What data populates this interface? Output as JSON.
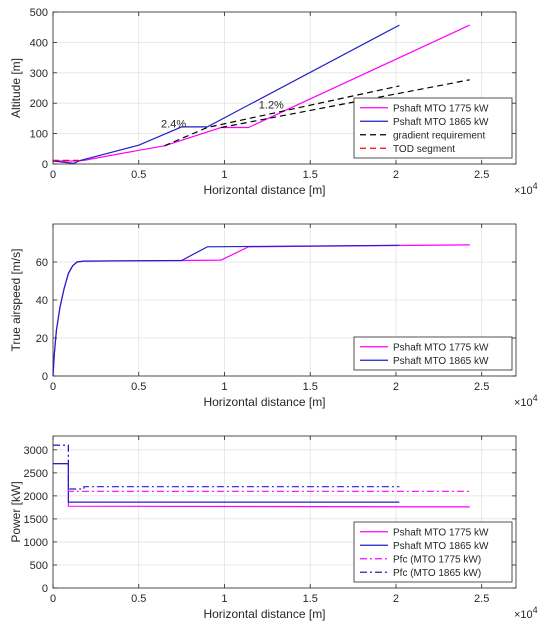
{
  "colors": {
    "magenta": "#ff00ff",
    "blue": "#2020c8",
    "black": "#000000",
    "red": "#ff0000",
    "axis": "#262626",
    "grid": "#e2e2e2"
  },
  "chart_data": [
    {
      "type": "line",
      "xlabel": "Horizontal distance [m]",
      "ylabel": "Altitude [m]",
      "xlim": [
        0,
        27000
      ],
      "ylim": [
        0,
        500
      ],
      "xticks": [
        0,
        5000,
        10000,
        15000,
        20000,
        25000
      ],
      "xtick_labels": [
        "0",
        "0.5",
        "1",
        "1.5",
        "2",
        "2.5"
      ],
      "yticks": [
        0,
        100,
        200,
        300,
        400,
        500
      ],
      "ytick_labels": [
        "0",
        "100",
        "200",
        "300",
        "400",
        "500"
      ],
      "x_exponent": "×10",
      "x_exponent_power": "4",
      "grid": true,
      "legend_position": "bottom-right",
      "annotations": [
        {
          "text": "2.4%",
          "x": 6300,
          "y": 120
        },
        {
          "text": "1.2%",
          "x": 12000,
          "y": 183
        }
      ],
      "series": [
        {
          "name": "Pshaft MTO 1775 kW",
          "color": "magenta",
          "dash": "solid",
          "points": [
            [
              0,
              10
            ],
            [
              1300,
              10
            ],
            [
              1800,
              12
            ],
            [
              5000,
              45
            ],
            [
              6500,
              60
            ],
            [
              9800,
              120
            ],
            [
              11400,
              120
            ],
            [
              24300,
              457
            ]
          ]
        },
        {
          "name": "Pshaft MTO 1865 kW",
          "color": "blue",
          "dash": "solid",
          "points": [
            [
              0,
              10
            ],
            [
              1200,
              2
            ],
            [
              1600,
              12
            ],
            [
              5000,
              62
            ],
            [
              7500,
              122
            ],
            [
              9000,
              122
            ],
            [
              20200,
              457
            ]
          ]
        },
        {
          "name": "gradient requirement",
          "color": "black",
          "dash": "dash",
          "points": [
            [
              6500,
              60
            ],
            [
              9000,
              120
            ],
            [
              20200,
              257
            ]
          ],
          "extra": [
            [
              [
                9800,
                120
              ],
              [
                24300,
                277
              ]
            ]
          ]
        },
        {
          "name": "TOD segment",
          "color": "red",
          "dash": "dash",
          "points": [
            [
              0,
              12
            ],
            [
              1500,
              12
            ]
          ]
        }
      ]
    },
    {
      "type": "line",
      "xlabel": "Horizontal distance [m]",
      "ylabel": "True airspeed [m/s]",
      "xlim": [
        0,
        27000
      ],
      "ylim": [
        0,
        80
      ],
      "xticks": [
        0,
        5000,
        10000,
        15000,
        20000,
        25000
      ],
      "xtick_labels": [
        "0",
        "0.5",
        "1",
        "1.5",
        "2",
        "2.5"
      ],
      "yticks": [
        0,
        20,
        40,
        60
      ],
      "ytick_labels": [
        "0",
        "20",
        "40",
        "60"
      ],
      "x_exponent": "×10",
      "x_exponent_power": "4",
      "grid": true,
      "legend_position": "bottom-right",
      "series": [
        {
          "name": "Pshaft MTO 1775 kW",
          "color": "magenta",
          "dash": "solid",
          "points": [
            [
              0,
              0
            ],
            [
              80,
              12
            ],
            [
              200,
              24
            ],
            [
              400,
              36
            ],
            [
              650,
              46
            ],
            [
              900,
              54
            ],
            [
              1150,
              58
            ],
            [
              1400,
              60
            ],
            [
              1800,
              60.5
            ],
            [
              7500,
              60.8
            ],
            [
              9800,
              61
            ],
            [
              11400,
              68
            ],
            [
              24300,
              69
            ]
          ]
        },
        {
          "name": "Pshaft MTO 1865 kW",
          "color": "blue",
          "dash": "solid",
          "points": [
            [
              0,
              0
            ],
            [
              80,
              12
            ],
            [
              200,
              24
            ],
            [
              400,
              36
            ],
            [
              650,
              46
            ],
            [
              900,
              54
            ],
            [
              1150,
              58
            ],
            [
              1400,
              60
            ],
            [
              1800,
              60.5
            ],
            [
              7500,
              60.8
            ],
            [
              9000,
              68
            ],
            [
              20200,
              68.8
            ]
          ]
        }
      ]
    },
    {
      "type": "line",
      "xlabel": "Horizontal distance [m]",
      "ylabel": "Power [kW]",
      "xlim": [
        0,
        27000
      ],
      "ylim": [
        0,
        3300
      ],
      "xticks": [
        0,
        5000,
        10000,
        15000,
        20000,
        25000
      ],
      "xtick_labels": [
        "0",
        "0.5",
        "1",
        "1.5",
        "2",
        "2.5"
      ],
      "yticks": [
        0,
        500,
        1000,
        1500,
        2000,
        2500,
        3000
      ],
      "ytick_labels": [
        "0",
        "500",
        "1000",
        "1500",
        "2000",
        "2500",
        "3000"
      ],
      "x_exponent": "×10",
      "x_exponent_power": "4",
      "grid": true,
      "legend_position": "bottom-right",
      "series": [
        {
          "name": "Pshaft MTO 1775 kW",
          "color": "magenta",
          "dash": "solid",
          "points": [
            [
              0,
              2700
            ],
            [
              900,
              2700
            ],
            [
              900,
              1775
            ],
            [
              24300,
              1760
            ]
          ]
        },
        {
          "name": "Pshaft MTO 1865 kW",
          "color": "blue",
          "dash": "solid",
          "points": [
            [
              0,
              2700
            ],
            [
              900,
              2700
            ],
            [
              900,
              1865
            ],
            [
              20200,
              1865
            ]
          ]
        },
        {
          "name": "Pfc (MTO 1775 kW)",
          "color": "magenta",
          "dash": "dashdot",
          "points": [
            [
              0,
              3100
            ],
            [
              900,
              3100
            ],
            [
              900,
              2100
            ],
            [
              24300,
              2100
            ]
          ]
        },
        {
          "name": "Pfc (MTO 1865 kW)",
          "color": "blue",
          "dash": "dashdot",
          "points": [
            [
              0,
              3100
            ],
            [
              900,
              3100
            ],
            [
              900,
              2150
            ],
            [
              1800,
              2150
            ],
            [
              1800,
              2200
            ],
            [
              20200,
              2200
            ]
          ]
        }
      ]
    }
  ]
}
